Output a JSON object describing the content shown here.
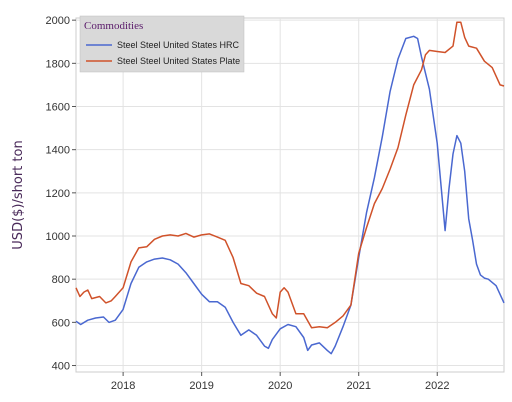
{
  "chart_data": {
    "type": "line",
    "title": "",
    "xlabel": "",
    "ylabel": "USD($)/short ton",
    "xlim": [
      2017.4,
      2022.85
    ],
    "ylim": [
      370,
      2010
    ],
    "x_ticks": [
      2018,
      2019,
      2020,
      2021,
      2022
    ],
    "x_tick_labels": [
      "2018",
      "2019",
      "2020",
      "2021",
      "2022"
    ],
    "y_ticks": [
      400,
      600,
      800,
      1000,
      1200,
      1400,
      1600,
      1800,
      2000
    ],
    "y_tick_labels": [
      "400",
      "600",
      "800",
      "1000",
      "1200",
      "1400",
      "1600",
      "1800",
      "2000"
    ],
    "grid": true,
    "legend": {
      "title": "Commodities",
      "placement": "top-left"
    },
    "series": [
      {
        "name": "Steel Steel United States HRC",
        "color": "#4a68d0",
        "points": [
          [
            2017.4,
            605
          ],
          [
            2017.46,
            590
          ],
          [
            2017.55,
            610
          ],
          [
            2017.65,
            620
          ],
          [
            2017.75,
            625
          ],
          [
            2017.82,
            600
          ],
          [
            2017.9,
            610
          ],
          [
            2018.0,
            660
          ],
          [
            2018.1,
            780
          ],
          [
            2018.2,
            855
          ],
          [
            2018.3,
            880
          ],
          [
            2018.4,
            893
          ],
          [
            2018.5,
            898
          ],
          [
            2018.6,
            890
          ],
          [
            2018.7,
            870
          ],
          [
            2018.8,
            830
          ],
          [
            2018.9,
            780
          ],
          [
            2019.0,
            730
          ],
          [
            2019.1,
            695
          ],
          [
            2019.2,
            695
          ],
          [
            2019.3,
            670
          ],
          [
            2019.4,
            600
          ],
          [
            2019.5,
            540
          ],
          [
            2019.6,
            565
          ],
          [
            2019.7,
            540
          ],
          [
            2019.8,
            490
          ],
          [
            2019.85,
            480
          ],
          [
            2019.9,
            520
          ],
          [
            2020.0,
            570
          ],
          [
            2020.1,
            590
          ],
          [
            2020.2,
            580
          ],
          [
            2020.3,
            530
          ],
          [
            2020.35,
            470
          ],
          [
            2020.4,
            495
          ],
          [
            2020.5,
            505
          ],
          [
            2020.6,
            470
          ],
          [
            2020.65,
            455
          ],
          [
            2020.7,
            490
          ],
          [
            2020.8,
            580
          ],
          [
            2020.9,
            680
          ],
          [
            2021.0,
            900
          ],
          [
            2021.1,
            1110
          ],
          [
            2021.2,
            1270
          ],
          [
            2021.3,
            1460
          ],
          [
            2021.4,
            1670
          ],
          [
            2021.5,
            1820
          ],
          [
            2021.6,
            1915
          ],
          [
            2021.7,
            1925
          ],
          [
            2021.75,
            1915
          ],
          [
            2021.8,
            1830
          ],
          [
            2021.9,
            1680
          ],
          [
            2022.0,
            1430
          ],
          [
            2022.1,
            1025
          ],
          [
            2022.15,
            1220
          ],
          [
            2022.2,
            1380
          ],
          [
            2022.25,
            1465
          ],
          [
            2022.3,
            1430
          ],
          [
            2022.35,
            1300
          ],
          [
            2022.4,
            1080
          ],
          [
            2022.45,
            980
          ],
          [
            2022.5,
            870
          ],
          [
            2022.55,
            820
          ],
          [
            2022.6,
            805
          ],
          [
            2022.65,
            800
          ],
          [
            2022.75,
            770
          ],
          [
            2022.85,
            690
          ]
        ]
      },
      {
        "name": "Steel Steel United States Plate",
        "color": "#d0522a",
        "points": [
          [
            2017.4,
            760
          ],
          [
            2017.45,
            720
          ],
          [
            2017.5,
            740
          ],
          [
            2017.55,
            750
          ],
          [
            2017.6,
            710
          ],
          [
            2017.7,
            720
          ],
          [
            2017.78,
            690
          ],
          [
            2017.85,
            700
          ],
          [
            2017.9,
            720
          ],
          [
            2018.0,
            760
          ],
          [
            2018.1,
            880
          ],
          [
            2018.2,
            945
          ],
          [
            2018.3,
            950
          ],
          [
            2018.4,
            985
          ],
          [
            2018.5,
            1000
          ],
          [
            2018.6,
            1005
          ],
          [
            2018.7,
            1000
          ],
          [
            2018.8,
            1012
          ],
          [
            2018.9,
            995
          ],
          [
            2019.0,
            1005
          ],
          [
            2019.1,
            1010
          ],
          [
            2019.2,
            995
          ],
          [
            2019.3,
            980
          ],
          [
            2019.4,
            900
          ],
          [
            2019.5,
            780
          ],
          [
            2019.6,
            770
          ],
          [
            2019.7,
            735
          ],
          [
            2019.8,
            720
          ],
          [
            2019.9,
            640
          ],
          [
            2019.95,
            620
          ],
          [
            2020.0,
            740
          ],
          [
            2020.05,
            760
          ],
          [
            2020.1,
            740
          ],
          [
            2020.2,
            640
          ],
          [
            2020.3,
            640
          ],
          [
            2020.4,
            575
          ],
          [
            2020.5,
            580
          ],
          [
            2020.6,
            575
          ],
          [
            2020.7,
            600
          ],
          [
            2020.8,
            630
          ],
          [
            2020.9,
            680
          ],
          [
            2021.0,
            920
          ],
          [
            2021.1,
            1040
          ],
          [
            2021.2,
            1150
          ],
          [
            2021.3,
            1220
          ],
          [
            2021.4,
            1310
          ],
          [
            2021.5,
            1410
          ],
          [
            2021.6,
            1560
          ],
          [
            2021.7,
            1700
          ],
          [
            2021.8,
            1770
          ],
          [
            2021.85,
            1840
          ],
          [
            2021.9,
            1860
          ],
          [
            2022.0,
            1855
          ],
          [
            2022.1,
            1850
          ],
          [
            2022.2,
            1880
          ],
          [
            2022.25,
            1990
          ],
          [
            2022.3,
            1990
          ],
          [
            2022.35,
            1920
          ],
          [
            2022.4,
            1880
          ],
          [
            2022.5,
            1870
          ],
          [
            2022.6,
            1810
          ],
          [
            2022.7,
            1780
          ],
          [
            2022.8,
            1700
          ],
          [
            2022.85,
            1695
          ]
        ]
      }
    ]
  }
}
